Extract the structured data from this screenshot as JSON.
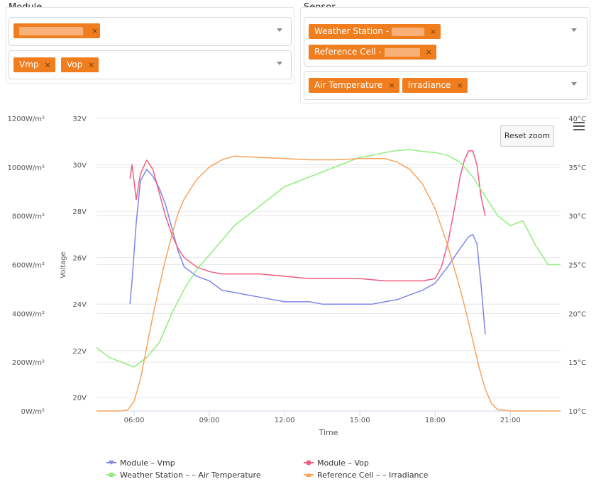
{
  "filters": {
    "module_title": "Module",
    "sensor_title": "Sensor",
    "module_chips": [
      "",
      "Vmp",
      "Vop"
    ],
    "sensor_chips": [
      "Weather Station - ",
      "Reference Cell - ",
      "Air Temperature",
      "Irradiance"
    ],
    "chip_remove": "×"
  },
  "chart_controls": {
    "reset_zoom": "Reset zoom",
    "menu_icon": "hamburger-icon"
  },
  "colors": {
    "vmp": "#8085e9",
    "vop": "#f15c80",
    "air": "#90ed7d",
    "irr": "#f7a35c",
    "chip": "#f07d1e"
  },
  "chart_data": {
    "type": "line",
    "xlabel": "Time",
    "x_ticks": [
      "06:00",
      "09:00",
      "12:00",
      "15:00",
      "18:00",
      "21:00"
    ],
    "x_range": [
      "04:30",
      "23:00"
    ],
    "axes": {
      "irradiance": {
        "ticks": [
          "0W/m²",
          "200W/m²",
          "400W/m²",
          "600W/m²",
          "800W/m²",
          "1000W/m²",
          "1200W/m²"
        ],
        "range": [
          0,
          1200
        ]
      },
      "voltage": {
        "label": "Voltage",
        "ticks": [
          "20V",
          "22V",
          "24V",
          "26V",
          "28V",
          "30V",
          "32V"
        ],
        "range": [
          19.4,
          32
        ]
      },
      "temperature": {
        "ticks": [
          "10°C",
          "15°C",
          "20°C",
          "25°C",
          "30°C",
          "35°C",
          "40°C"
        ],
        "range": [
          10,
          40
        ]
      }
    },
    "grid": true,
    "legend_position": "bottom",
    "series": [
      {
        "key": "vmp",
        "name": "Module                          – Vmp",
        "axis": "voltage",
        "points": [
          [
            "05:50",
            24
          ],
          [
            "05:55",
            25
          ],
          [
            "06:05",
            27.5
          ],
          [
            "06:15",
            29.3
          ],
          [
            "06:30",
            29.8
          ],
          [
            "06:45",
            29.5
          ],
          [
            "07:00",
            29
          ],
          [
            "07:15",
            28.3
          ],
          [
            "07:30",
            27.3
          ],
          [
            "07:45",
            26.3
          ],
          [
            "08:00",
            25.6
          ],
          [
            "08:30",
            25.2
          ],
          [
            "09:00",
            25
          ],
          [
            "09:30",
            24.6
          ],
          [
            "10:00",
            24.5
          ],
          [
            "10:30",
            24.4
          ],
          [
            "11:00",
            24.3
          ],
          [
            "11:30",
            24.2
          ],
          [
            "12:00",
            24.1
          ],
          [
            "12:30",
            24.1
          ],
          [
            "13:00",
            24.1
          ],
          [
            "13:30",
            24
          ],
          [
            "14:00",
            24
          ],
          [
            "14:30",
            24
          ],
          [
            "15:00",
            24
          ],
          [
            "15:30",
            24
          ],
          [
            "16:00",
            24.1
          ],
          [
            "16:30",
            24.2
          ],
          [
            "17:00",
            24.4
          ],
          [
            "17:30",
            24.6
          ],
          [
            "18:00",
            24.9
          ],
          [
            "18:30",
            25.6
          ],
          [
            "19:00",
            26.4
          ],
          [
            "19:20",
            26.9
          ],
          [
            "19:30",
            27
          ],
          [
            "19:40",
            26.6
          ],
          [
            "19:50",
            24.8
          ],
          [
            "20:00",
            22.7
          ]
        ]
      },
      {
        "key": "vop",
        "name": "Module                          – Vop",
        "axis": "voltage",
        "points": [
          [
            "05:50",
            29.4
          ],
          [
            "05:55",
            30
          ],
          [
            "06:05",
            28.5
          ],
          [
            "06:15",
            29.6
          ],
          [
            "06:30",
            30.2
          ],
          [
            "06:45",
            29.8
          ],
          [
            "07:00",
            28.8
          ],
          [
            "07:15",
            27.8
          ],
          [
            "07:30",
            27
          ],
          [
            "07:45",
            26.4
          ],
          [
            "08:00",
            26
          ],
          [
            "08:30",
            25.6
          ],
          [
            "09:00",
            25.4
          ],
          [
            "09:30",
            25.3
          ],
          [
            "10:00",
            25.3
          ],
          [
            "11:00",
            25.3
          ],
          [
            "12:00",
            25.2
          ],
          [
            "13:00",
            25.1
          ],
          [
            "14:00",
            25.1
          ],
          [
            "15:00",
            25.1
          ],
          [
            "16:00",
            25
          ],
          [
            "17:00",
            25
          ],
          [
            "17:30",
            25
          ],
          [
            "18:00",
            25.1
          ],
          [
            "18:15",
            25.6
          ],
          [
            "18:30",
            26.6
          ],
          [
            "18:45",
            28
          ],
          [
            "19:00",
            29.5
          ],
          [
            "19:10",
            30.2
          ],
          [
            "19:20",
            30.6
          ],
          [
            "19:30",
            30.6
          ],
          [
            "19:40",
            30
          ],
          [
            "19:50",
            28.6
          ],
          [
            "20:00",
            27.8
          ]
        ]
      },
      {
        "key": "air",
        "name": "Weather Station –             – Air Temperature",
        "axis": "temperature",
        "points": [
          [
            "04:30",
            16.5
          ],
          [
            "05:00",
            15.5
          ],
          [
            "05:30",
            15
          ],
          [
            "06:00",
            14.5
          ],
          [
            "06:30",
            15.5
          ],
          [
            "07:00",
            17
          ],
          [
            "07:30",
            20
          ],
          [
            "08:00",
            22.5
          ],
          [
            "08:30",
            24.5
          ],
          [
            "09:00",
            26
          ],
          [
            "09:30",
            27.5
          ],
          [
            "10:00",
            29
          ],
          [
            "10:30",
            30
          ],
          [
            "11:00",
            31
          ],
          [
            "11:30",
            32
          ],
          [
            "12:00",
            33
          ],
          [
            "12:30",
            33.5
          ],
          [
            "13:00",
            34
          ],
          [
            "13:30",
            34.5
          ],
          [
            "14:00",
            35
          ],
          [
            "14:30",
            35.5
          ],
          [
            "15:00",
            36
          ],
          [
            "15:30",
            36.2
          ],
          [
            "16:00",
            36.5
          ],
          [
            "16:30",
            36.7
          ],
          [
            "17:00",
            36.8
          ],
          [
            "17:30",
            36.6
          ],
          [
            "18:00",
            36.5
          ],
          [
            "18:30",
            36.2
          ],
          [
            "19:00",
            35.5
          ],
          [
            "19:30",
            34
          ],
          [
            "20:00",
            32
          ],
          [
            "20:30",
            30
          ],
          [
            "21:00",
            29
          ],
          [
            "21:30",
            29.5
          ],
          [
            "22:00",
            27
          ],
          [
            "22:30",
            25
          ],
          [
            "23:00",
            25
          ]
        ]
      },
      {
        "key": "irr",
        "name": "Reference Cell –             – Irradiance",
        "axis": "irradiance",
        "points": [
          [
            "04:30",
            0
          ],
          [
            "05:30",
            0
          ],
          [
            "05:45",
            5
          ],
          [
            "06:00",
            40
          ],
          [
            "06:15",
            130
          ],
          [
            "06:30",
            260
          ],
          [
            "06:45",
            390
          ],
          [
            "07:00",
            510
          ],
          [
            "07:15",
            620
          ],
          [
            "07:30",
            720
          ],
          [
            "07:45",
            810
          ],
          [
            "08:00",
            870
          ],
          [
            "08:30",
            950
          ],
          [
            "09:00",
            1000
          ],
          [
            "09:30",
            1030
          ],
          [
            "10:00",
            1045
          ],
          [
            "11:00",
            1040
          ],
          [
            "12:00",
            1035
          ],
          [
            "13:00",
            1030
          ],
          [
            "14:00",
            1030
          ],
          [
            "15:00",
            1035
          ],
          [
            "16:00",
            1035
          ],
          [
            "16:30",
            1020
          ],
          [
            "17:00",
            990
          ],
          [
            "17:30",
            930
          ],
          [
            "18:00",
            830
          ],
          [
            "18:30",
            680
          ],
          [
            "19:00",
            500
          ],
          [
            "19:15",
            400
          ],
          [
            "19:30",
            290
          ],
          [
            "19:45",
            180
          ],
          [
            "20:00",
            90
          ],
          [
            "20:15",
            30
          ],
          [
            "20:30",
            5
          ],
          [
            "21:00",
            0
          ],
          [
            "23:00",
            0
          ]
        ]
      }
    ]
  }
}
